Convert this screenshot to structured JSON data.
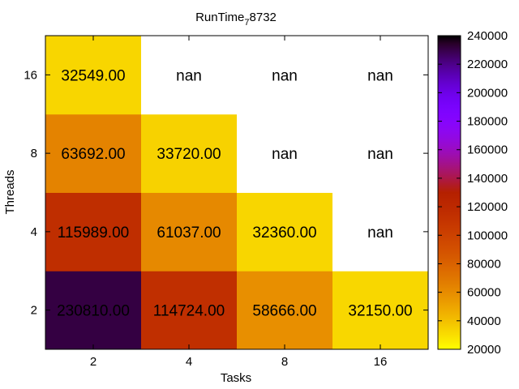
{
  "chart_data": {
    "type": "heatmap",
    "title": "RunTime",
    "title_subscript": "7",
    "title_suffix": "8732",
    "xlabel": "Tasks",
    "ylabel": "Threads",
    "x_categories": [
      "2",
      "4",
      "8",
      "16"
    ],
    "y_categories": [
      "2",
      "4",
      "8",
      "16"
    ],
    "values": [
      [
        230810.0,
        114724.0,
        58666.0,
        32150.0
      ],
      [
        115989.0,
        61037.0,
        32360.0,
        null
      ],
      [
        63692.0,
        33720.0,
        null,
        null
      ],
      [
        32549.0,
        null,
        null,
        null
      ]
    ],
    "cell_labels": [
      [
        "230810.00",
        "114724.00",
        "58666.00",
        "32150.00"
      ],
      [
        "115989.00",
        "61037.00",
        "32360.00",
        "nan"
      ],
      [
        "63692.00",
        "33720.00",
        "nan",
        "nan"
      ],
      [
        "32549.00",
        "nan",
        "nan",
        "nan"
      ]
    ],
    "colorbar": {
      "range": [
        20000,
        240000
      ],
      "ticks": [
        "20000",
        "40000",
        "60000",
        "80000",
        "100000",
        "120000",
        "140000",
        "160000",
        "180000",
        "200000",
        "220000",
        "240000"
      ],
      "colormap": "gnuplot-pm3d-reversed"
    },
    "missing_color": "#ffffff",
    "grid": false
  }
}
